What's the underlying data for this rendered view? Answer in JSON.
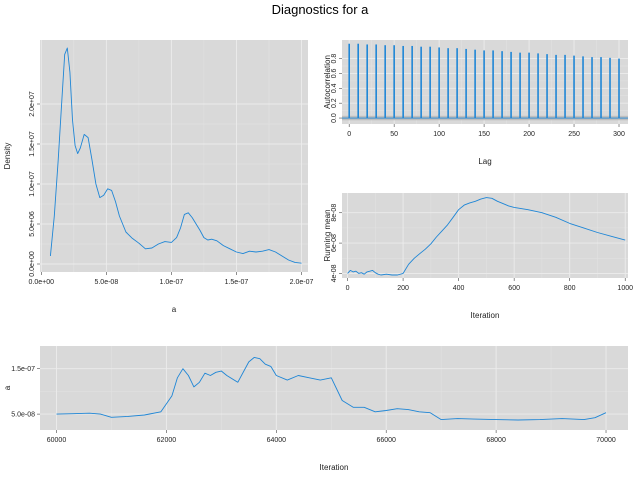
{
  "title": "Diagnostics for a",
  "colors": {
    "series": "#1f86d6",
    "panel": "#d9d9d9",
    "grid": "#ececec",
    "band": "#b6b6b6"
  },
  "chart_data": [
    {
      "id": "density",
      "type": "line",
      "xlabel": "a",
      "ylabel": "Density",
      "xlim": [
        -1e-09,
        2.05e-07
      ],
      "ylim": [
        -1000000.0,
        28000000.0
      ],
      "xticks": [
        0,
        5e-08,
        1e-07,
        1.5e-07,
        2e-07
      ],
      "xtick_labels": [
        "0.0e+00",
        "5.0e-08",
        "1.0e-07",
        "1.5e-07",
        "2.0e-07"
      ],
      "yticks": [
        0,
        5000000.0,
        10000000.0,
        15000000.0,
        20000000.0
      ],
      "ytick_labels": [
        "0.0e+00",
        "5.0e+06",
        "1.0e+07",
        "1.5e+07",
        "2.0e+07"
      ],
      "grid": true,
      "x": [
        7e-09,
        1e-08,
        1.3e-08,
        1.6e-08,
        1.8e-08,
        2e-08,
        2.2e-08,
        2.4e-08,
        2.6e-08,
        2.8e-08,
        3e-08,
        3.3e-08,
        3.6e-08,
        3.9e-08,
        4.2e-08,
        4.5e-08,
        4.8e-08,
        5.1e-08,
        5.4e-08,
        5.7e-08,
        6e-08,
        6.5e-08,
        7e-08,
        7.5e-08,
        8e-08,
        8.5e-08,
        9e-08,
        9.5e-08,
        1e-07,
        1.04e-07,
        1.07e-07,
        1.1e-07,
        1.13e-07,
        1.16e-07,
        1.19e-07,
        1.22e-07,
        1.25e-07,
        1.28e-07,
        1.31e-07,
        1.35e-07,
        1.4e-07,
        1.45e-07,
        1.5e-07,
        1.55e-07,
        1.6e-07,
        1.65e-07,
        1.7e-07,
        1.75e-07,
        1.8e-07,
        1.85e-07,
        1.9e-07,
        1.95e-07,
        2e-07
      ],
      "y": [
        1000000.0,
        6000000.0,
        13000000.0,
        21000000.0,
        26200000.0,
        27000000.0,
        24000000.0,
        18000000.0,
        14800000.0,
        13800000.0,
        14500000.0,
        16200000.0,
        15800000.0,
        13000000.0,
        10000000.0,
        8300000.0,
        8600000.0,
        9400000.0,
        9200000.0,
        7800000.0,
        6000000.0,
        4000000.0,
        3200000.0,
        2600000.0,
        1900000.0,
        2000000.0,
        2500000.0,
        2800000.0,
        2700000.0,
        3300000.0,
        4500000.0,
        6200000.0,
        6400000.0,
        5800000.0,
        5000000.0,
        4200000.0,
        3300000.0,
        3000000.0,
        3100000.0,
        2900000.0,
        2300000.0,
        1900000.0,
        1500000.0,
        1300000.0,
        1600000.0,
        1500000.0,
        1600000.0,
        1800000.0,
        1500000.0,
        1000000.0,
        500000.0,
        200000.0,
        100000.0
      ]
    },
    {
      "id": "autocorrelation",
      "type": "bar",
      "xlabel": "Lag",
      "ylabel": "Autocorrelation",
      "xlim": [
        -8,
        310
      ],
      "ylim": [
        -0.08,
        1.05
      ],
      "xticks": [
        0,
        50,
        100,
        150,
        200,
        250,
        300
      ],
      "xtick_labels": [
        "0",
        "50",
        "100",
        "150",
        "200",
        "250",
        "300"
      ],
      "yticks": [
        0,
        0.2,
        0.4,
        0.6,
        0.8
      ],
      "ytick_labels": [
        "0.0",
        "0.2",
        "0.4",
        "0.6",
        "0.8"
      ],
      "confidence_band": [
        -0.03,
        0.03
      ],
      "grid": true,
      "lags": [
        0,
        10,
        20,
        30,
        40,
        50,
        60,
        70,
        80,
        90,
        100,
        110,
        120,
        130,
        140,
        150,
        160,
        170,
        180,
        190,
        200,
        210,
        220,
        230,
        240,
        250,
        260,
        270,
        280,
        290,
        300
      ],
      "values": [
        1.0,
        1.0,
        0.99,
        0.99,
        0.98,
        0.98,
        0.97,
        0.97,
        0.96,
        0.96,
        0.95,
        0.94,
        0.94,
        0.93,
        0.92,
        0.91,
        0.91,
        0.9,
        0.89,
        0.88,
        0.88,
        0.87,
        0.86,
        0.85,
        0.85,
        0.84,
        0.83,
        0.82,
        0.82,
        0.81,
        0.8
      ]
    },
    {
      "id": "running-mean",
      "type": "line",
      "xlabel": "Iteration",
      "ylabel": "Running mean",
      "xlim": [
        -20,
        1010
      ],
      "ylim": [
        3.7e-08,
        9.3e-08
      ],
      "xticks": [
        0,
        200,
        400,
        600,
        800,
        1000
      ],
      "xtick_labels": [
        "0",
        "200",
        "400",
        "600",
        "800",
        "1000"
      ],
      "yticks": [
        4e-08,
        6e-08,
        8e-08
      ],
      "ytick_labels": [
        "4e-08",
        "6e-08",
        "8e-08"
      ],
      "grid": true,
      "x": [
        0,
        10,
        20,
        30,
        40,
        50,
        60,
        70,
        80,
        90,
        100,
        110,
        120,
        140,
        160,
        180,
        200,
        220,
        240,
        260,
        280,
        300,
        320,
        340,
        360,
        380,
        400,
        420,
        440,
        460,
        480,
        500,
        520,
        540,
        560,
        580,
        600,
        650,
        700,
        750,
        800,
        850,
        900,
        950,
        1000
      ],
      "y": [
        4e-08,
        4.2e-08,
        4.1e-08,
        4.15e-08,
        4e-08,
        4.05e-08,
        3.95e-08,
        4.1e-08,
        4.15e-08,
        4.2e-08,
        4.05e-08,
        3.95e-08,
        3.9e-08,
        3.95e-08,
        3.9e-08,
        3.9e-08,
        4e-08,
        4.6e-08,
        5e-08,
        5.3e-08,
        5.6e-08,
        5.95e-08,
        6.4e-08,
        6.8e-08,
        7.2e-08,
        7.7e-08,
        8.2e-08,
        8.5e-08,
        8.65e-08,
        8.75e-08,
        8.9e-08,
        9e-08,
        8.95e-08,
        8.75e-08,
        8.6e-08,
        8.45e-08,
        8.35e-08,
        8.2e-08,
        8e-08,
        7.7e-08,
        7.3e-08,
        7e-08,
        6.7e-08,
        6.45e-08,
        6.2e-08
      ]
    },
    {
      "id": "trace",
      "type": "line",
      "xlabel": "Iteration",
      "ylabel": "a",
      "xlim": [
        59700,
        70400
      ],
      "ylim": [
        1.5e-08,
        2e-07
      ],
      "xticks": [
        60000,
        62000,
        64000,
        66000,
        68000,
        70000
      ],
      "xtick_labels": [
        "60000",
        "62000",
        "64000",
        "66000",
        "68000",
        "70000"
      ],
      "yticks": [
        5e-08,
        1.5e-07
      ],
      "ytick_labels": [
        "5.0e-08",
        "1.5e-07"
      ],
      "grid": true,
      "x": [
        60000,
        60300,
        60600,
        60800,
        61000,
        61300,
        61600,
        61900,
        62100,
        62200,
        62300,
        62400,
        62500,
        62600,
        62700,
        62800,
        62900,
        63000,
        63100,
        63300,
        63500,
        63600,
        63700,
        63800,
        63900,
        64000,
        64200,
        64400,
        64600,
        64800,
        65000,
        65200,
        65400,
        65600,
        65800,
        66000,
        66200,
        66400,
        66600,
        66800,
        67000,
        67300,
        67600,
        68000,
        68400,
        68800,
        69200,
        69600,
        69800,
        70000
      ],
      "y": [
        5e-08,
        5.1e-08,
        5.2e-08,
        5e-08,
        4.3e-08,
        4.5e-08,
        4.8e-08,
        5.5e-08,
        9e-08,
        1.3e-07,
        1.5e-07,
        1.35e-07,
        1.1e-07,
        1.2e-07,
        1.4e-07,
        1.35e-07,
        1.42e-07,
        1.45e-07,
        1.35e-07,
        1.2e-07,
        1.65e-07,
        1.75e-07,
        1.72e-07,
        1.6e-07,
        1.55e-07,
        1.35e-07,
        1.25e-07,
        1.35e-07,
        1.3e-07,
        1.25e-07,
        1.3e-07,
        8e-08,
        6.5e-08,
        6.5e-08,
        5.5e-08,
        5.8e-08,
        6.2e-08,
        6e-08,
        5.5e-08,
        5.3e-08,
        3.8e-08,
        4e-08,
        3.9e-08,
        3.8e-08,
        3.7e-08,
        3.8e-08,
        4e-08,
        3.8e-08,
        4.2e-08,
        5.3e-08
      ]
    }
  ]
}
